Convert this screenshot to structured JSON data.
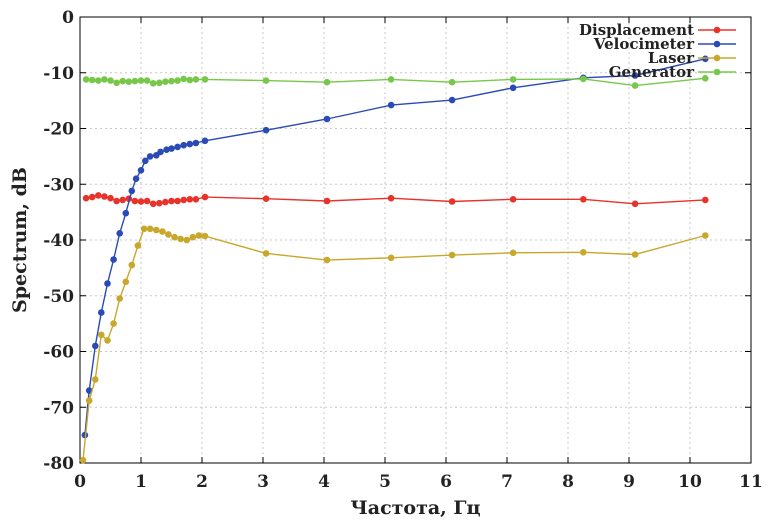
{
  "chart_data": {
    "type": "line",
    "xlabel": "Частота, Гц",
    "ylabel": "Spectrum, dB",
    "xlim": [
      0,
      11
    ],
    "ylim": [
      -80,
      0
    ],
    "xticks": [
      0,
      1,
      2,
      3,
      4,
      5,
      6,
      7,
      8,
      9,
      10,
      11
    ],
    "yticks": [
      0,
      -10,
      -20,
      -30,
      -40,
      -50,
      -60,
      -70,
      -80
    ],
    "grid": true,
    "legend_position": "top-right",
    "series": [
      {
        "name": "Displacement",
        "color": "#e8332a",
        "x": [
          0.1,
          0.2,
          0.3,
          0.4,
          0.5,
          0.6,
          0.7,
          0.8,
          0.9,
          1.0,
          1.1,
          1.2,
          1.3,
          1.4,
          1.5,
          1.6,
          1.7,
          1.8,
          1.9,
          2.05,
          3.05,
          4.05,
          5.1,
          6.1,
          7.1,
          8.25,
          9.1,
          10.25
        ],
        "y": [
          -32.5,
          -32.3,
          -32.0,
          -32.2,
          -32.5,
          -33.0,
          -32.8,
          -32.6,
          -33.0,
          -33.1,
          -33.0,
          -33.5,
          -33.4,
          -33.2,
          -33.0,
          -33.0,
          -32.8,
          -32.7,
          -32.7,
          -32.3,
          -32.6,
          -33.0,
          -32.5,
          -33.1,
          -32.7,
          -32.7,
          -33.5,
          -32.8
        ]
      },
      {
        "name": "Velocimeter",
        "color": "#2a4bb5",
        "x": [
          0.08,
          0.15,
          0.25,
          0.35,
          0.45,
          0.55,
          0.65,
          0.75,
          0.85,
          0.92,
          1.0,
          1.07,
          1.15,
          1.25,
          1.32,
          1.42,
          1.5,
          1.6,
          1.7,
          1.8,
          1.9,
          2.05,
          3.05,
          4.05,
          5.1,
          6.1,
          7.1,
          8.25,
          9.1,
          10.25
        ],
        "y": [
          -75,
          -67,
          -59,
          -53,
          -47.8,
          -43.5,
          -38.8,
          -35.2,
          -31.2,
          -29.0,
          -27.5,
          -25.8,
          -25.0,
          -24.8,
          -24.2,
          -23.8,
          -23.6,
          -23.3,
          -23.0,
          -22.8,
          -22.6,
          -22.2,
          -20.3,
          -18.3,
          -15.8,
          -14.9,
          -12.7,
          -10.9,
          -10.5,
          -7.5
        ]
      },
      {
        "name": "Laser",
        "color": "#c9a72b",
        "x": [
          0.05,
          0.15,
          0.25,
          0.35,
          0.45,
          0.55,
          0.65,
          0.75,
          0.85,
          0.95,
          1.05,
          1.15,
          1.25,
          1.35,
          1.45,
          1.55,
          1.65,
          1.75,
          1.85,
          1.95,
          2.05,
          3.05,
          4.05,
          5.1,
          6.1,
          7.1,
          8.25,
          9.1,
          10.25
        ],
        "y": [
          -79.5,
          -68.8,
          -65.0,
          -57.0,
          -58.0,
          -55.0,
          -50.5,
          -47.5,
          -44.5,
          -41.0,
          -38.0,
          -38.0,
          -38.2,
          -38.5,
          -39.0,
          -39.5,
          -39.8,
          -40.0,
          -39.5,
          -39.2,
          -39.3,
          -42.4,
          -43.6,
          -43.2,
          -42.7,
          -42.3,
          -42.2,
          -42.6,
          -39.2
        ]
      },
      {
        "name": "Generator",
        "color": "#77c84a",
        "x": [
          0.1,
          0.2,
          0.3,
          0.4,
          0.5,
          0.6,
          0.7,
          0.8,
          0.9,
          1.0,
          1.1,
          1.2,
          1.3,
          1.4,
          1.5,
          1.6,
          1.7,
          1.8,
          1.9,
          2.05,
          3.05,
          4.05,
          5.1,
          6.1,
          7.1,
          8.25,
          9.1,
          10.25
        ],
        "y": [
          -11.2,
          -11.3,
          -11.4,
          -11.2,
          -11.4,
          -11.8,
          -11.5,
          -11.6,
          -11.5,
          -11.4,
          -11.4,
          -11.9,
          -11.8,
          -11.6,
          -11.5,
          -11.4,
          -11.1,
          -11.3,
          -11.2,
          -11.2,
          -11.4,
          -11.7,
          -11.2,
          -11.7,
          -11.2,
          -11.1,
          -12.3,
          -11.0
        ]
      }
    ]
  }
}
